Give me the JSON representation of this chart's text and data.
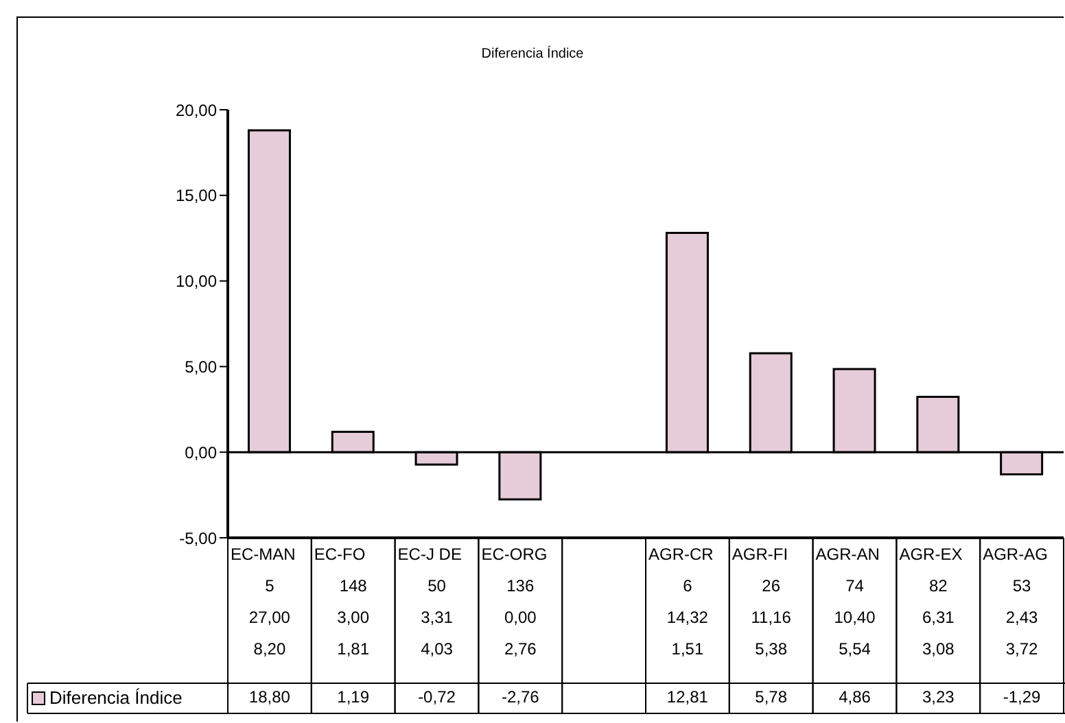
{
  "chart_data": {
    "type": "bar",
    "title": "Diferencia Índice",
    "categories": [
      "EC-MAN\n5\n27,00\n8,20",
      "EC-FO\n148\n3,00\n1,81",
      "EC-J DE\n50\n3,31\n4,03",
      "EC-ORG\n136\n0,00\n2,76",
      null,
      "AGR-CR\n6\n14,32\n1,51",
      "AGR-FI\n26\n11,16\n5,38",
      "AGR-AN\n74\n10,40\n5,54",
      "AGR-EX\n82\n6,31\n3,08",
      "AGR-AG\n53\n2,43\n3,72"
    ],
    "series": [
      {
        "name": "Diferencia Índice",
        "color": "#e6cbd8",
        "values": [
          18.8,
          1.19,
          -0.72,
          -2.76,
          null,
          12.81,
          5.78,
          4.86,
          3.23,
          -1.29
        ],
        "value_labels": [
          "18,80",
          "1,19",
          "-0,72",
          "-2,76",
          null,
          "12,81",
          "5,78",
          "4,86",
          "3,23",
          "-1,29"
        ]
      }
    ],
    "ylim": [
      -5,
      20
    ],
    "yticks": [
      {
        "value": -5,
        "label": "-5,00"
      },
      {
        "value": 0,
        "label": "0,00"
      },
      {
        "value": 5,
        "label": "5,00"
      },
      {
        "value": 10,
        "label": "10,00"
      },
      {
        "value": 15,
        "label": "15,00"
      },
      {
        "value": 20,
        "label": "20,00"
      }
    ],
    "legend": "bottom left"
  }
}
